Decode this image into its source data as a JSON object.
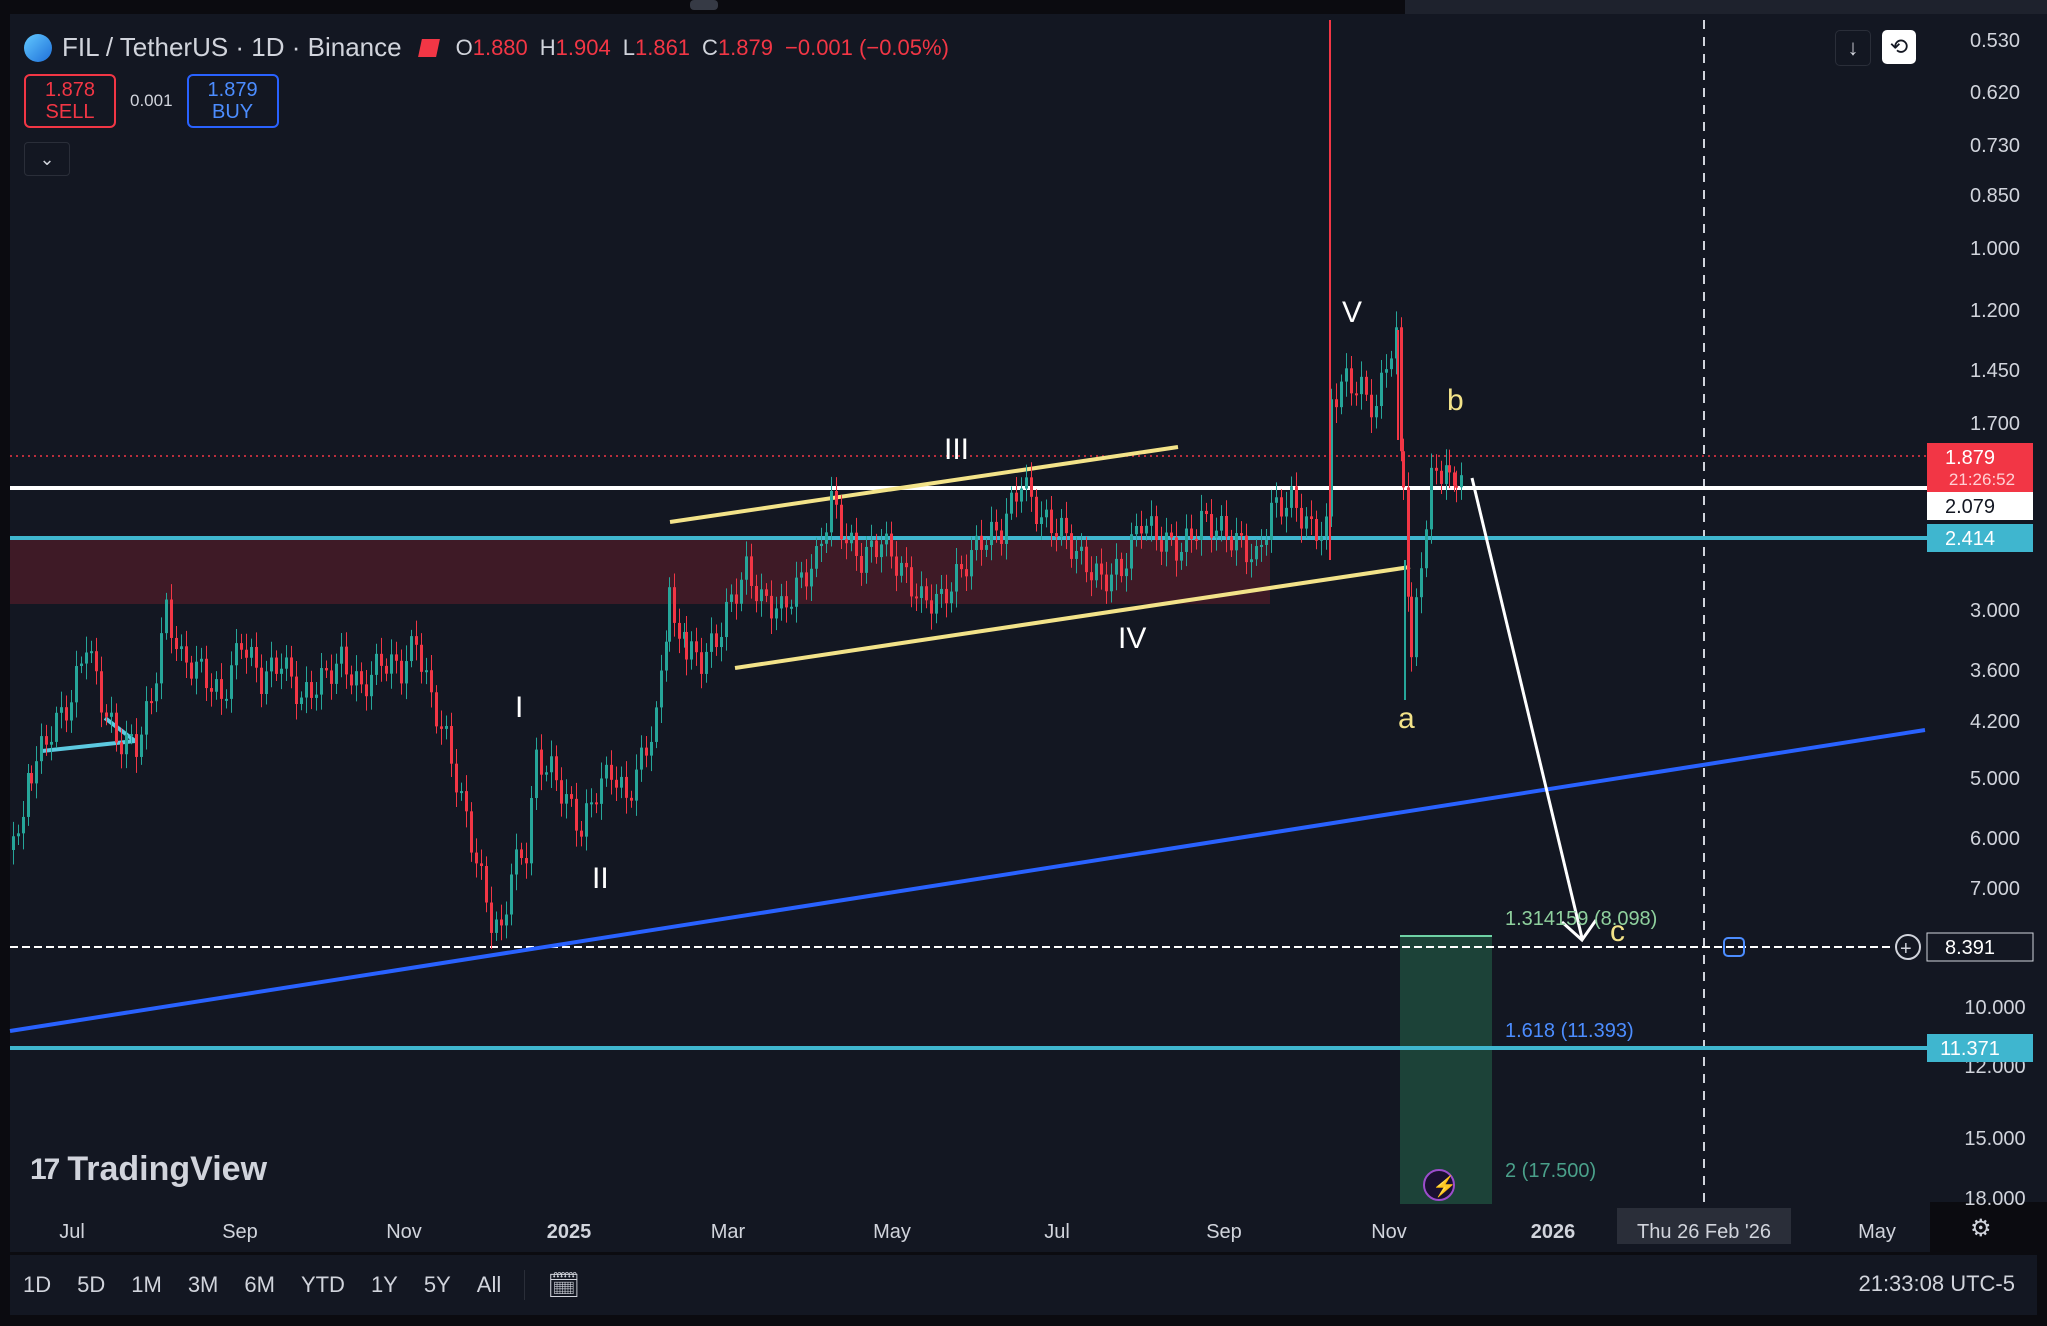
{
  "symbol": {
    "title": "FIL / TetherUS · 1D · Binance",
    "ohlc": [
      {
        "k": "O",
        "v": "1.880"
      },
      {
        "k": "H",
        "v": "1.904"
      },
      {
        "k": "L",
        "v": "1.861"
      },
      {
        "k": "C",
        "v": "1.879"
      },
      {
        "k": "",
        "v": "−0.001 (−0.05%)"
      }
    ]
  },
  "trade": {
    "sell_price": "1.878",
    "sell_label": "SELL",
    "spread": "0.001",
    "buy_price": "1.879",
    "buy_label": "BUY"
  },
  "price_axis": {
    "labels": [
      "0.530",
      "0.620",
      "0.730",
      "0.850",
      "1.000",
      "1.200",
      "1.450",
      "1.700",
      "3.000",
      "3.600",
      "4.200",
      "5.000",
      "6.000",
      "7.000",
      "10.000",
      "12.000",
      "15.000",
      "18.000"
    ],
    "badges": [
      {
        "text": "1.879",
        "sub": "21:26:52",
        "color": "#f23645"
      },
      {
        "text": "2.079",
        "color": "#ffffff"
      },
      {
        "text": "2.414",
        "color": "#3fb6cf"
      },
      {
        "text": "8.391",
        "color": "#131722"
      },
      {
        "text": "11.371",
        "color": "#3fb6cf"
      }
    ]
  },
  "time_axis": {
    "labels": [
      "Jul",
      "Sep",
      "Nov",
      "2025",
      "Mar",
      "May",
      "Jul",
      "Sep",
      "Nov",
      "2026",
      "May"
    ],
    "crosshair": "Thu 26 Feb '26"
  },
  "annotations": {
    "waves": [
      "I",
      "II",
      "III",
      "IV",
      "V",
      "a",
      "b",
      "c"
    ],
    "fib": [
      "1.314159 (8.098)",
      "1.618 (11.393)",
      "2 (17.500)"
    ]
  },
  "colors": {
    "up": "#26a69a",
    "down": "#f23645",
    "accent_blue": "#2962ff",
    "cyan": "#3fb6cf",
    "zone": "#4a1c28",
    "projection": "#1f4a3c",
    "yellow": "#f3e389"
  },
  "timeframes": [
    "1D",
    "5D",
    "1M",
    "3M",
    "6M",
    "YTD",
    "1Y",
    "5Y",
    "All"
  ],
  "clock": "21:33:08 UTC-5",
  "brand": "TradingView"
}
